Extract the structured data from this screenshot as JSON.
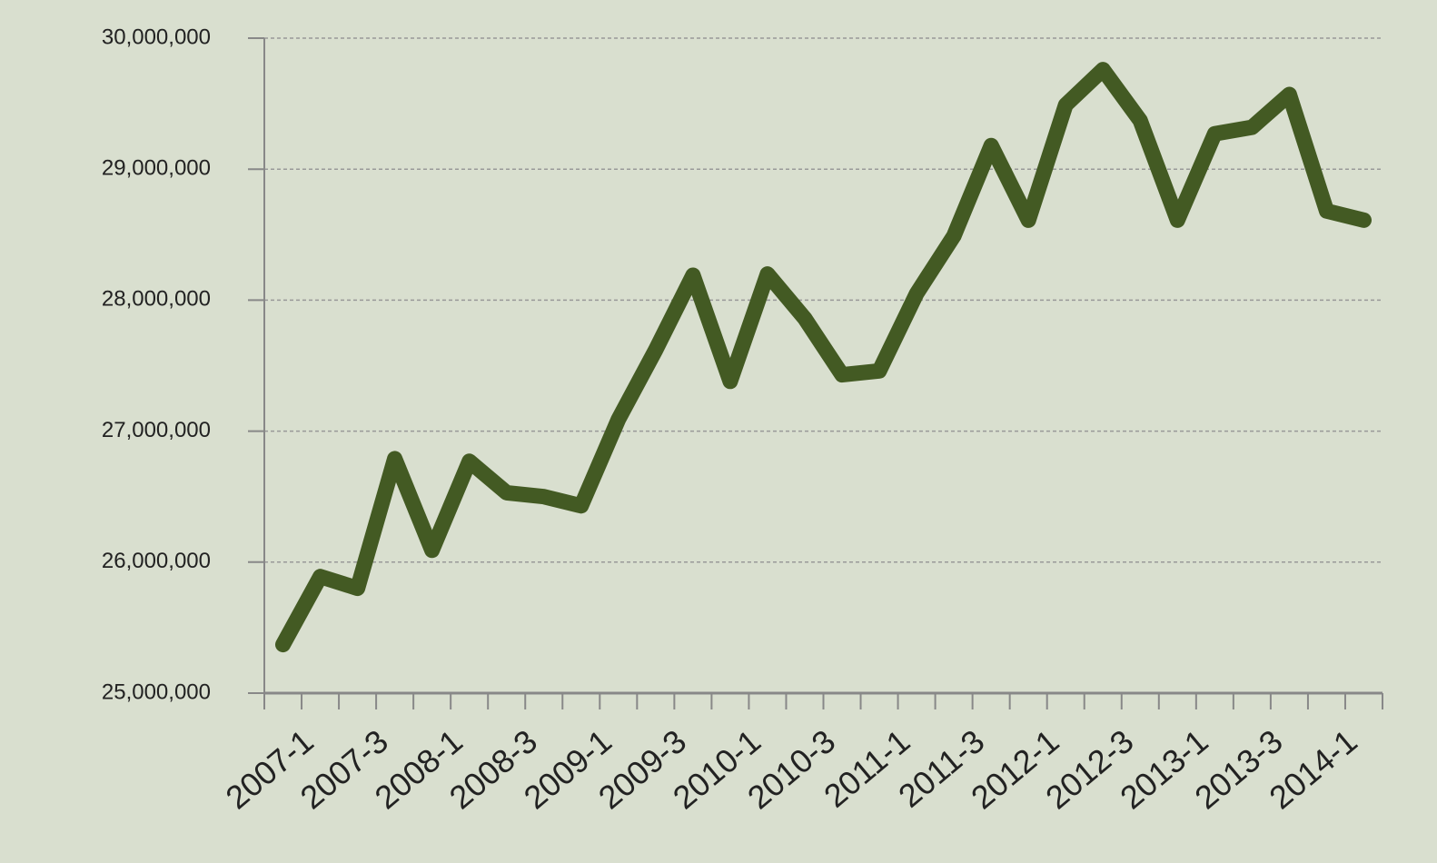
{
  "chart_data": {
    "type": "line",
    "categories": [
      "2007-1",
      null,
      "2007-3",
      null,
      "2008-1",
      null,
      "2008-3",
      null,
      "2009-1",
      null,
      "2009-3",
      null,
      "2010-1",
      null,
      "2010-3",
      null,
      "2011-1",
      null,
      "2011-3",
      null,
      "2012-1",
      null,
      "2012-3",
      null,
      "2013-1",
      null,
      "2013-3",
      null,
      "2014-1",
      null
    ],
    "series": [
      {
        "color": "#435a23",
        "values": [
          25370000,
          25890000,
          25800000,
          26790000,
          26090000,
          26770000,
          26530000,
          26500000,
          26430000,
          27090000,
          27620000,
          28190000,
          27380000,
          28200000,
          27860000,
          27430000,
          27460000,
          28050000,
          28490000,
          29180000,
          28610000,
          29490000,
          29760000,
          29370000,
          28610000,
          29270000,
          29320000,
          29570000,
          28680000,
          28610000
        ]
      }
    ],
    "ylim": [
      25000000,
      30000000
    ],
    "yticks": [
      {
        "value": 25000000,
        "label": "25,000,000"
      },
      {
        "value": 26000000,
        "label": "26,000,000"
      },
      {
        "value": 27000000,
        "label": "27,000,000"
      },
      {
        "value": 28000000,
        "label": "28,000,000"
      },
      {
        "value": 29000000,
        "label": "29,000,000"
      },
      {
        "value": 30000000,
        "label": "30,000,000"
      }
    ],
    "grid": true
  }
}
